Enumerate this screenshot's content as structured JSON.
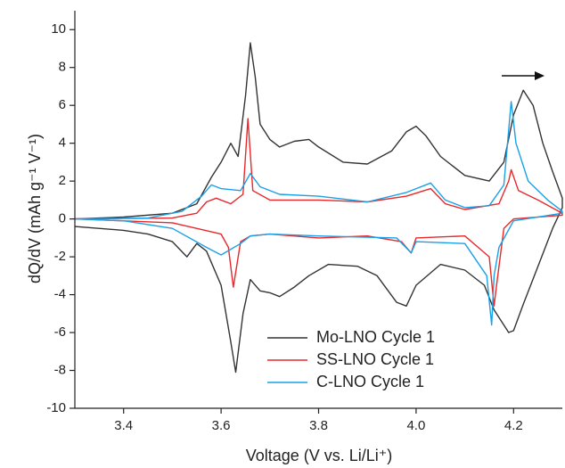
{
  "chart_data": {
    "type": "line",
    "xlabel": "Voltage (V vs. Li/Li⁺)",
    "ylabel": "dQ/dV (mAh g⁻¹ V⁻¹)",
    "xlim": [
      3.3,
      4.3
    ],
    "xticks": [
      3.4,
      3.6,
      3.8,
      {
        "value": 4.0,
        "label": "4.0"
      },
      4.2
    ],
    "ylim": [
      -10,
      11
    ],
    "yticks": [
      -10,
      -8,
      -6,
      -4,
      -2,
      0,
      2,
      4,
      6,
      8,
      10
    ],
    "legend": "lower right",
    "series": [
      {
        "name": "Mo-LNO Cycle 1",
        "color": "#333333",
        "x": [
          3.3,
          3.4,
          3.5,
          3.55,
          3.58,
          3.6,
          3.62,
          3.635,
          3.65,
          3.66,
          3.67,
          3.68,
          3.7,
          3.72,
          3.75,
          3.78,
          3.8,
          3.85,
          3.9,
          3.95,
          3.98,
          4.0,
          4.02,
          4.05,
          4.1,
          4.15,
          4.18,
          4.2,
          4.22,
          4.24,
          4.26,
          4.28,
          4.3,
          4.3,
          4.28,
          4.25,
          4.22,
          4.2,
          4.19,
          4.17,
          4.16,
          4.14,
          4.1,
          4.05,
          4.0,
          3.98,
          3.96,
          3.92,
          3.88,
          3.82,
          3.78,
          3.75,
          3.72,
          3.7,
          3.68,
          3.66,
          3.645,
          3.63,
          3.62,
          3.6,
          3.57,
          3.55,
          3.53,
          3.5,
          3.45,
          3.4,
          3.3
        ],
        "values": [
          0,
          0.1,
          0.3,
          0.8,
          2.2,
          3.0,
          4.0,
          3.3,
          6.5,
          9.3,
          7.5,
          5.0,
          4.2,
          3.8,
          4.1,
          4.2,
          3.8,
          3.0,
          2.9,
          3.6,
          4.6,
          4.9,
          4.4,
          3.3,
          2.3,
          2.0,
          3.0,
          5.5,
          6.8,
          6.0,
          4.0,
          2.5,
          1.1,
          0.6,
          -0.5,
          -2.5,
          -4.5,
          -5.9,
          -6.0,
          -5.2,
          -4.8,
          -3.5,
          -2.7,
          -2.4,
          -3.5,
          -4.6,
          -4.4,
          -3.0,
          -2.5,
          -2.4,
          -3.0,
          -3.6,
          -4.1,
          -3.9,
          -3.8,
          -3.2,
          -5.0,
          -8.1,
          -6.5,
          -3.5,
          -1.7,
          -1.3,
          -2.0,
          -1.2,
          -0.8,
          -0.6,
          -0.4
        ]
      },
      {
        "name": "SS-LNO Cycle 1",
        "color": "#e8282b",
        "x": [
          3.3,
          3.5,
          3.55,
          3.57,
          3.59,
          3.62,
          3.645,
          3.655,
          3.665,
          3.7,
          3.8,
          3.9,
          3.98,
          4.03,
          4.06,
          4.1,
          4.17,
          4.19,
          4.195,
          4.21,
          4.25,
          4.3,
          4.3,
          4.2,
          4.18,
          4.165,
          4.16,
          4.15,
          4.1,
          4.0,
          3.99,
          3.97,
          3.9,
          3.8,
          3.7,
          3.66,
          3.64,
          3.625,
          3.615,
          3.6,
          3.5,
          3.3
        ],
        "values": [
          0,
          0.05,
          0.3,
          0.9,
          1.1,
          0.8,
          1.3,
          5.3,
          1.5,
          1.0,
          1.0,
          0.9,
          1.2,
          1.6,
          0.8,
          0.5,
          0.8,
          2.0,
          2.6,
          1.5,
          1.0,
          0.3,
          0.2,
          0.0,
          -0.5,
          -3.5,
          -4.6,
          -2.0,
          -0.9,
          -1.0,
          -1.8,
          -1.2,
          -0.9,
          -1.0,
          -0.8,
          -0.9,
          -1.2,
          -3.6,
          -1.5,
          -0.8,
          -0.2,
          0
        ]
      },
      {
        "name": "C-LNO Cycle 1",
        "color": "#1aa0e6",
        "x": [
          3.3,
          3.45,
          3.52,
          3.56,
          3.58,
          3.6,
          3.64,
          3.66,
          3.68,
          3.72,
          3.8,
          3.9,
          3.98,
          4.03,
          4.06,
          4.1,
          4.15,
          4.18,
          4.195,
          4.205,
          4.23,
          4.27,
          4.3,
          4.3,
          4.2,
          4.17,
          4.16,
          4.155,
          4.145,
          4.1,
          4.0,
          3.99,
          3.96,
          3.8,
          3.7,
          3.66,
          3.64,
          3.6,
          3.57,
          3.5,
          3.4,
          3.3
        ],
        "values": [
          0,
          0.05,
          0.4,
          1.2,
          1.8,
          1.6,
          1.5,
          2.4,
          1.7,
          1.3,
          1.2,
          0.9,
          1.4,
          1.9,
          1.0,
          0.6,
          0.7,
          1.8,
          6.2,
          4.0,
          2.0,
          1.0,
          0.4,
          0.3,
          -0.1,
          -1.5,
          -3.0,
          -5.6,
          -3.0,
          -1.3,
          -1.2,
          -1.8,
          -1.0,
          -0.9,
          -0.8,
          -0.9,
          -1.3,
          -1.9,
          -1.5,
          -0.5,
          -0.1,
          0
        ]
      }
    ]
  }
}
